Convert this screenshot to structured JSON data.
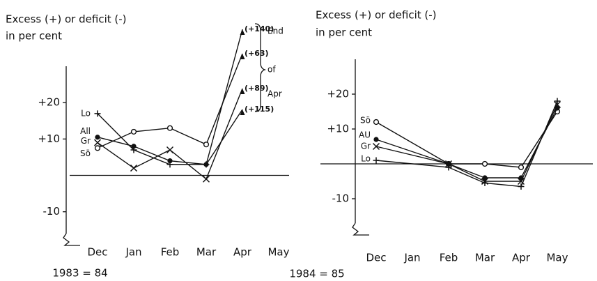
{
  "chart_data": [
    {
      "type": "line",
      "ylabel": [
        "Excess (+) or deficit (-)",
        "in per cent"
      ],
      "categories": [
        "Dec",
        "Jan",
        "Feb",
        "Mar",
        "Apr",
        "May"
      ],
      "x": [
        "Dec",
        "Jan",
        "Feb",
        "Mar",
        "Apr"
      ],
      "xlabel": "1983 = 84",
      "ylim": [
        -16,
        30
      ],
      "yticks": [
        {
          "value": 20,
          "label": "+20"
        },
        {
          "value": 10,
          "label": "+10"
        },
        -10
      ],
      "annotation": [
        "End",
        "of",
        "Apr"
      ],
      "series": [
        {
          "name": "Lo",
          "marker": "plus",
          "color": "#111",
          "values": [
            17,
            7,
            3,
            3,
            140
          ],
          "value_labels": [
            null,
            null,
            null,
            null,
            "(+140)"
          ]
        },
        {
          "name": "All",
          "marker": "dot",
          "color": "#111",
          "values": [
            10.5,
            8,
            4,
            3,
            115
          ],
          "value_labels": [
            null,
            null,
            null,
            null,
            "(+115)"
          ]
        },
        {
          "name": "Gr",
          "marker": "cross",
          "color": "#111",
          "values": [
            9,
            2,
            7,
            -1,
            89
          ],
          "value_labels": [
            null,
            null,
            null,
            null,
            "(+89)"
          ]
        },
        {
          "name": "Sö",
          "marker": "circle",
          "color": "#111",
          "values": [
            7.5,
            12,
            13,
            8.5,
            63
          ],
          "value_labels": [
            null,
            null,
            null,
            null,
            "(+63)"
          ]
        }
      ]
    },
    {
      "type": "line",
      "ylabel": [
        "Excess (+) or deficit (-)",
        "in per cent"
      ],
      "categories": [
        "Dec",
        "Jan",
        "Feb",
        "Mar",
        "Apr",
        "May"
      ],
      "x": [
        "Dec",
        "Feb",
        "Mar",
        "Apr",
        "May"
      ],
      "xlabel": "1984 = 85",
      "ylim": [
        -17,
        30
      ],
      "yticks": [
        {
          "value": 20,
          "label": "+20"
        },
        {
          "value": 10,
          "label": "+10"
        },
        -10
      ],
      "series": [
        {
          "name": "Sö",
          "marker": "circle",
          "color": "#111",
          "values": [
            12,
            0,
            0,
            -1,
            15
          ]
        },
        {
          "name": "AU",
          "marker": "dot",
          "color": "#111",
          "values": [
            7,
            0,
            -4,
            -4,
            16
          ]
        },
        {
          "name": "Gr",
          "marker": "cross",
          "color": "#111",
          "values": [
            5,
            0,
            -5,
            -5,
            17
          ]
        },
        {
          "name": "Lo",
          "marker": "plus",
          "color": "#111",
          "values": [
            1,
            -1,
            -5.5,
            -6.5,
            18
          ]
        }
      ]
    }
  ]
}
